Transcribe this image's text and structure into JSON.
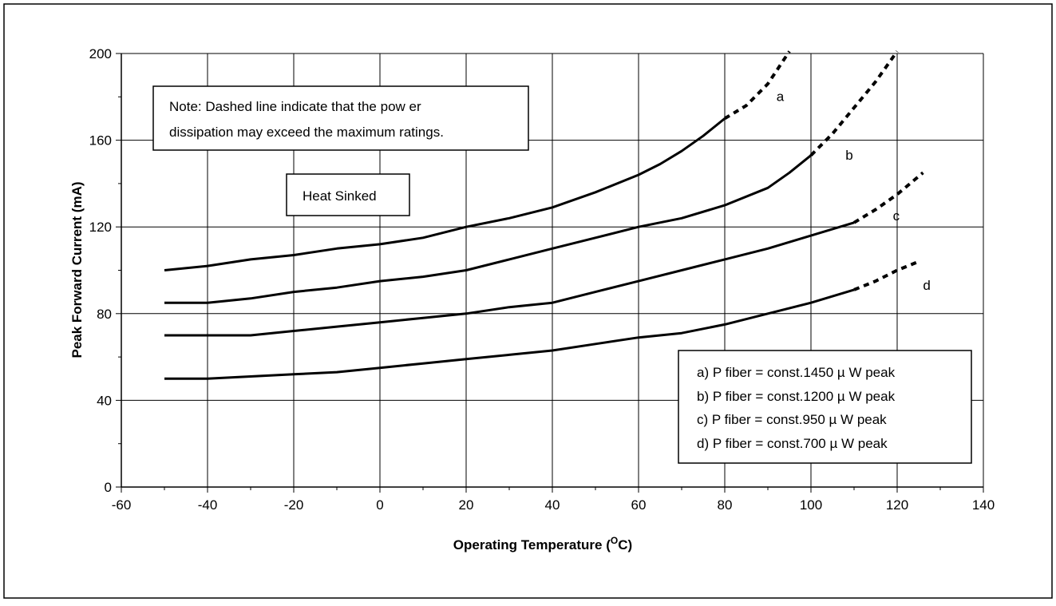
{
  "chart_data": {
    "type": "line",
    "xlabel": "Operating Temperature",
    "xlabel_unit_prefix": "(",
    "xlabel_unit_super": "O",
    "xlabel_unit_rest": "C)",
    "ylabel": "Peak Forward Current (mA)",
    "xlim": [
      -60,
      140
    ],
    "ylim": [
      0,
      200
    ],
    "x_ticks": [
      -60,
      -40,
      -20,
      0,
      20,
      40,
      60,
      80,
      100,
      120,
      140
    ],
    "y_ticks": [
      0,
      40,
      80,
      120,
      160,
      200
    ],
    "grid": "vertical and horizontal at major ticks",
    "note_line1": "Note: Dashed line indicate that the pow er",
    "note_line2": "dissipation may exceed the maximum ratings.",
    "heat_label": "Heat Sinked",
    "legend_placement": "bottom-right",
    "legend": [
      "a) P fiber = const.1450 µ W peak",
      "b) P fiber = const.1200 µ W peak",
      "c) P fiber = const.950 µ W peak",
      "d) P fiber = const.700 µ W peak"
    ],
    "series": [
      {
        "name": "a",
        "solid": [
          [
            -50,
            100
          ],
          [
            -40,
            102
          ],
          [
            -30,
            105
          ],
          [
            -20,
            107
          ],
          [
            -10,
            110
          ],
          [
            0,
            112
          ],
          [
            10,
            115
          ],
          [
            20,
            120
          ],
          [
            30,
            124
          ],
          [
            40,
            129
          ],
          [
            50,
            136
          ],
          [
            60,
            144
          ],
          [
            65,
            149
          ],
          [
            70,
            155
          ],
          [
            75,
            162
          ],
          [
            80,
            170
          ]
        ],
        "dashed": [
          [
            80,
            170
          ],
          [
            85,
            176
          ],
          [
            90,
            186
          ],
          [
            95,
            201
          ]
        ]
      },
      {
        "name": "b",
        "solid": [
          [
            -50,
            85
          ],
          [
            -40,
            85
          ],
          [
            -30,
            87
          ],
          [
            -20,
            90
          ],
          [
            -10,
            92
          ],
          [
            0,
            95
          ],
          [
            10,
            97
          ],
          [
            20,
            100
          ],
          [
            30,
            105
          ],
          [
            40,
            110
          ],
          [
            50,
            115
          ],
          [
            60,
            120
          ],
          [
            70,
            124
          ],
          [
            80,
            130
          ],
          [
            90,
            138
          ],
          [
            95,
            145
          ],
          [
            100,
            153
          ]
        ],
        "dashed": [
          [
            100,
            153
          ],
          [
            105,
            163
          ],
          [
            110,
            175
          ],
          [
            115,
            187
          ],
          [
            120,
            201
          ]
        ]
      },
      {
        "name": "c",
        "solid": [
          [
            -50,
            70
          ],
          [
            -40,
            70
          ],
          [
            -30,
            70
          ],
          [
            -20,
            72
          ],
          [
            -10,
            74
          ],
          [
            0,
            76
          ],
          [
            10,
            78
          ],
          [
            20,
            80
          ],
          [
            30,
            83
          ],
          [
            40,
            85
          ],
          [
            50,
            90
          ],
          [
            60,
            95
          ],
          [
            70,
            100
          ],
          [
            80,
            105
          ],
          [
            90,
            110
          ],
          [
            100,
            116
          ],
          [
            110,
            122
          ]
        ],
        "dashed": [
          [
            110,
            122
          ],
          [
            115,
            128
          ],
          [
            120,
            135
          ],
          [
            126,
            145
          ]
        ]
      },
      {
        "name": "d",
        "solid": [
          [
            -50,
            50
          ],
          [
            -40,
            50
          ],
          [
            -30,
            51
          ],
          [
            -20,
            52
          ],
          [
            -10,
            53
          ],
          [
            0,
            55
          ],
          [
            10,
            57
          ],
          [
            20,
            59
          ],
          [
            30,
            61
          ],
          [
            40,
            63
          ],
          [
            50,
            66
          ],
          [
            60,
            69
          ],
          [
            70,
            71
          ],
          [
            80,
            75
          ],
          [
            90,
            80
          ],
          [
            100,
            85
          ],
          [
            110,
            91
          ]
        ],
        "dashed": [
          [
            110,
            91
          ],
          [
            115,
            95
          ],
          [
            120,
            100
          ],
          [
            125,
            104
          ]
        ]
      }
    ],
    "curve_labels": [
      {
        "text": "a",
        "x": 92,
        "y": 178
      },
      {
        "text": "b",
        "x": 108,
        "y": 151
      },
      {
        "text": "c",
        "x": 119,
        "y": 123
      },
      {
        "text": "d",
        "x": 126,
        "y": 91
      }
    ]
  }
}
